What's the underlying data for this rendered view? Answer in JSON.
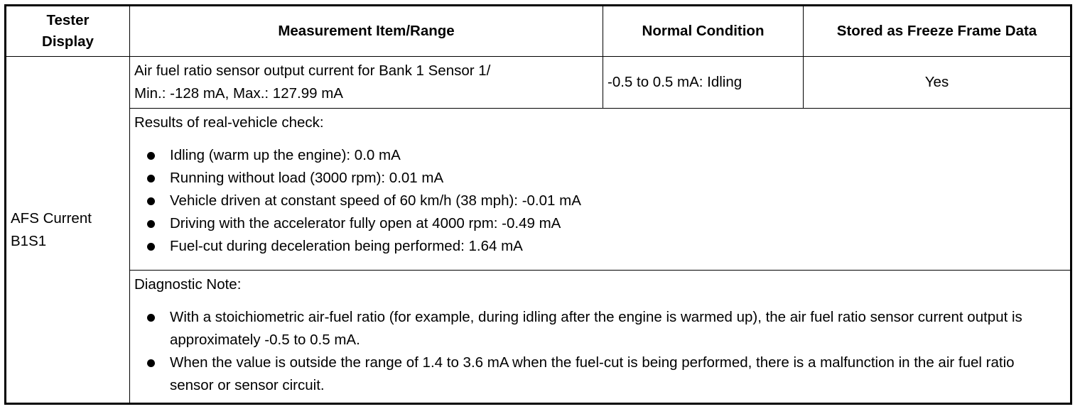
{
  "headers": {
    "tester_display": "Tester Display",
    "measurement": "Measurement Item/Range",
    "normal": "Normal Condition",
    "freeze": "Stored as Freeze Frame Data"
  },
  "row": {
    "tester_display": "AFS Current B1S1",
    "measurement_line1": "Air fuel ratio sensor output current for Bank 1 Sensor 1/",
    "measurement_line2": "Min.: -128 mA, Max.: 127.99 mA",
    "normal": "-0.5 to 0.5 mA: Idling",
    "freeze": "Yes"
  },
  "results": {
    "title": "Results of real-vehicle check:",
    "items": [
      "Idling (warm up the engine): 0.0 mA",
      "Running without load (3000 rpm): 0.01 mA",
      "Vehicle driven at constant speed of 60 km/h (38 mph): -0.01 mA",
      "Driving with the accelerator fully open at 4000 rpm: -0.49 mA",
      "Fuel-cut during deceleration being performed: 1.64 mA"
    ]
  },
  "note": {
    "title": "Diagnostic Note:",
    "items": [
      "With a stoichiometric air-fuel ratio (for example, during idling after the engine is warmed up), the air fuel ratio sensor current output is approximately -0.5 to 0.5 mA.",
      "When the value is outside the range of 1.4 to 3.6 mA when the fuel-cut is being performed, there is a malfunction in the air fuel ratio sensor or sensor circuit."
    ]
  }
}
